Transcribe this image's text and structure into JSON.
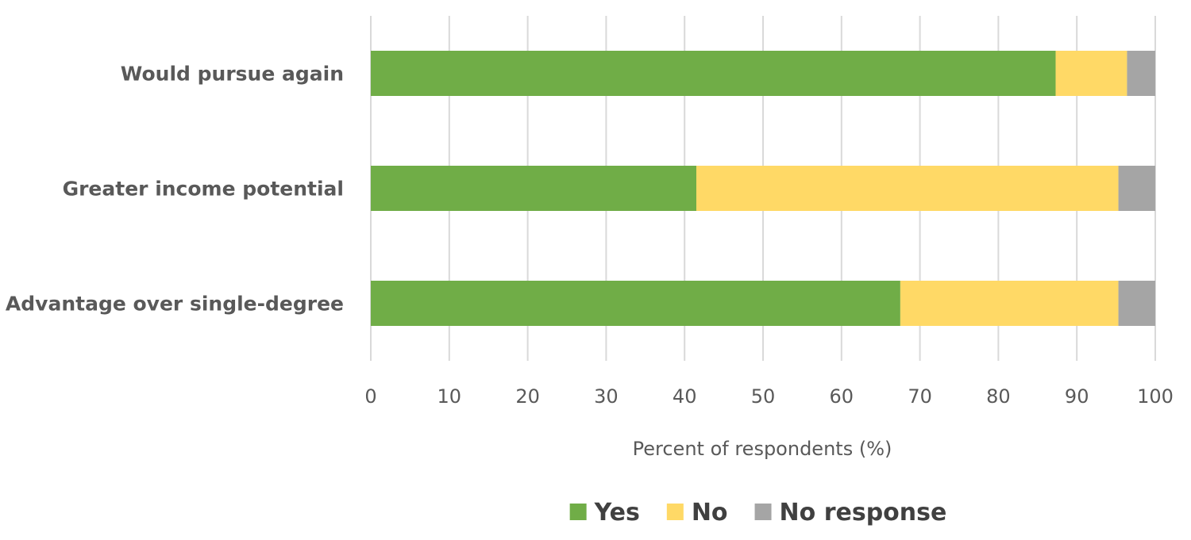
{
  "chart_data": {
    "type": "bar",
    "orientation": "horizontal",
    "stacked": true,
    "categories": [
      "Would pursue again",
      "Greater income potential",
      "Advantage over single-degree"
    ],
    "series": [
      {
        "name": "Yes",
        "color": "#70ad47",
        "values": [
          87.3,
          41.5,
          67.5
        ]
      },
      {
        "name": "No",
        "color": "#ffd966",
        "values": [
          9.1,
          53.8,
          27.8
        ]
      },
      {
        "name": "No response",
        "color": "#a5a5a5",
        "values": [
          3.6,
          4.7,
          4.7
        ]
      }
    ],
    "xlabel": "Percent of respondents (%)",
    "xlim": [
      0,
      100
    ],
    "xticks": [
      "0",
      "10",
      "20",
      "30",
      "40",
      "50",
      "60",
      "70",
      "80",
      "90",
      "100"
    ],
    "grid": true,
    "legend_position": "bottom"
  }
}
